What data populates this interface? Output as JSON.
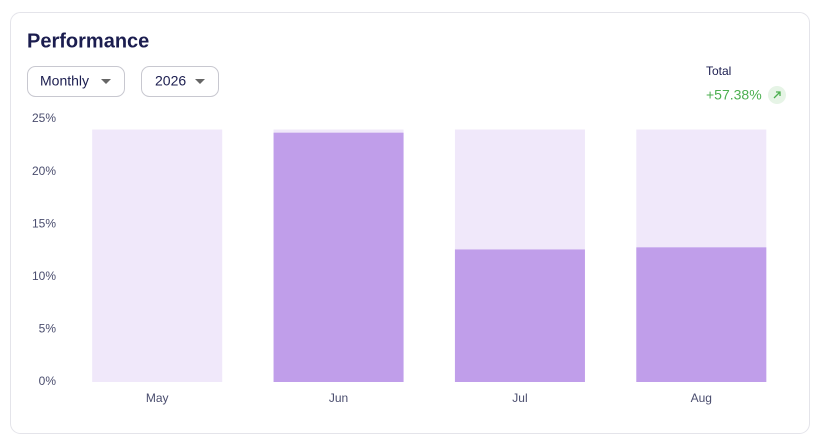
{
  "chart_data": {
    "type": "bar",
    "title": "Performance",
    "controls": [
      "Monthly",
      "2026"
    ],
    "total_label": "Total",
    "total": {
      "value": 57.38,
      "label": "+57.38%"
    },
    "categories": [
      "May",
      "Jun",
      "Jul",
      "Aug"
    ],
    "values": [
      0,
      23.7,
      12.6,
      12.8
    ],
    "track": 24,
    "color": "#c09eea",
    "track_color": "#f0e8fa",
    "ylim": [
      0,
      25
    ],
    "yticks": [
      {
        "value": 0,
        "label": "0%"
      },
      {
        "value": 5,
        "label": "5%"
      },
      {
        "value": 10,
        "label": "10%"
      },
      {
        "value": 15,
        "label": "15%"
      },
      {
        "value": 20,
        "label": "20%"
      },
      {
        "value": 25,
        "label": "25%"
      }
    ],
    "grid": false
  }
}
